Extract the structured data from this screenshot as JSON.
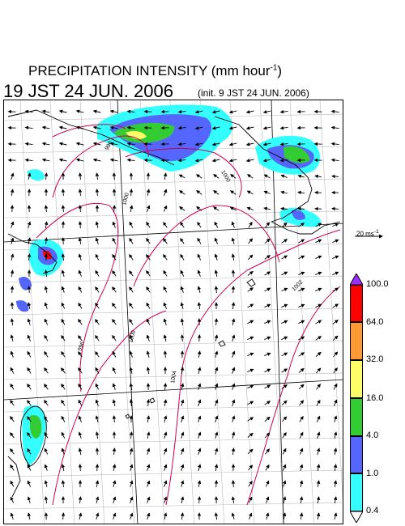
{
  "header": {
    "title": "PRECIPITATION INTENSITY (mm hour",
    "title_exp": "-1",
    "title_end": ")",
    "datetime": "19 JST 24 JUN. 2006",
    "init": "(init. 9 JST 24 JUN. 2006)"
  },
  "wind_reference": {
    "label": "20 ms",
    "exp": "-1"
  },
  "isobars": [
    "996",
    "1000",
    "1000",
    "996",
    "1004",
    "1002",
    "1000"
  ],
  "colorbar": {
    "ticks": [
      "100.0",
      "64.0",
      "32.0",
      "16.0",
      "4.0",
      "1.0",
      "0.4"
    ],
    "colors": [
      "#9b30ff",
      "#ff0000",
      "#ff9933",
      "#ffff66",
      "#33cc33",
      "#5566ff",
      "#33ffff",
      "#ffffff"
    ]
  }
}
